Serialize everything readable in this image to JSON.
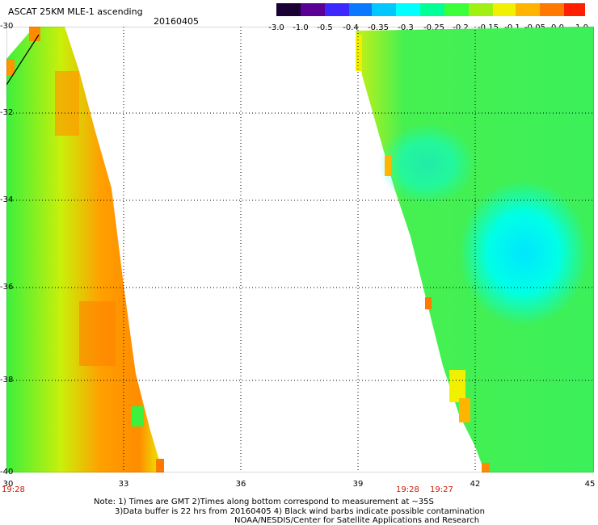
{
  "header": {
    "title": "ASCAT 25KM MLE-1 ascending",
    "date": "20160405"
  },
  "colorbar": {
    "labels": [
      "-3.0",
      "-1.0",
      "-0.5",
      "-0.4",
      "-0.35",
      "-0.3",
      "-0.25",
      "-0.2",
      "-0.15",
      "-0.1",
      "-0.05",
      "0.0",
      "1.0"
    ],
    "colors": [
      "#1a0033",
      "#5a0096",
      "#3c28ff",
      "#0a78ff",
      "#00c8ff",
      "#00ffff",
      "#00ff96",
      "#3cff3c",
      "#a0f014",
      "#f0f000",
      "#ffb400",
      "#ff7800",
      "#ff1e00"
    ]
  },
  "map": {
    "lon_ticks": [
      "30",
      "33",
      "36",
      "39",
      "42",
      "45"
    ],
    "lat_ticks": [
      "-30",
      "-32",
      "-34",
      "-36",
      "-38",
      "-40"
    ],
    "swath_times": [
      "19:28",
      "19:28",
      "19:27"
    ],
    "notes": [
      "Note: 1) Times are GMT 2)Times along bottom correspond to measurement at ~35S",
      "3)Data buffer is 22 hrs from 20160405 4) Black wind barbs indicate possible contamination",
      "NOAA/NESDIS/Center for Satellite Applications and Research"
    ]
  }
}
